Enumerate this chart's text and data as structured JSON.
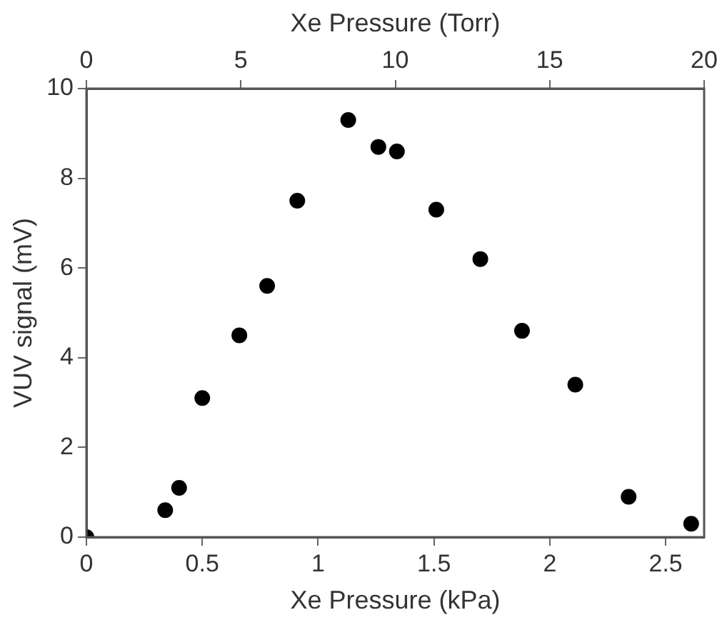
{
  "chart_data": {
    "type": "scatter",
    "xlabel": "Xe Pressure (kPa)",
    "ylabel": "VUV signal (mV)",
    "x2label": "Xe Pressure (Torr)",
    "x": [
      0,
      0.34,
      0.4,
      0.5,
      0.66,
      0.78,
      0.91,
      1.13,
      1.26,
      1.34,
      1.51,
      1.7,
      1.88,
      2.11,
      2.34,
      2.61
    ],
    "series": [
      {
        "color": "#000000",
        "values": [
          0,
          0.6,
          1.1,
          3.1,
          4.5,
          5.6,
          7.5,
          9.3,
          8.7,
          8.6,
          7.3,
          6.2,
          4.6,
          3.4,
          0.9,
          0.3
        ]
      }
    ],
    "xlim": [
      0,
      2.666
    ],
    "xticks": [
      0,
      0.5,
      1,
      1.5,
      2,
      2.5
    ],
    "x2lim": [
      0,
      20
    ],
    "x2ticks": [
      0,
      5,
      10,
      15,
      20
    ],
    "ylim": [
      0,
      10
    ],
    "yticks": [
      0,
      2,
      4,
      6,
      8,
      10
    ],
    "marker": "circle",
    "grid": false,
    "legend": false
  }
}
